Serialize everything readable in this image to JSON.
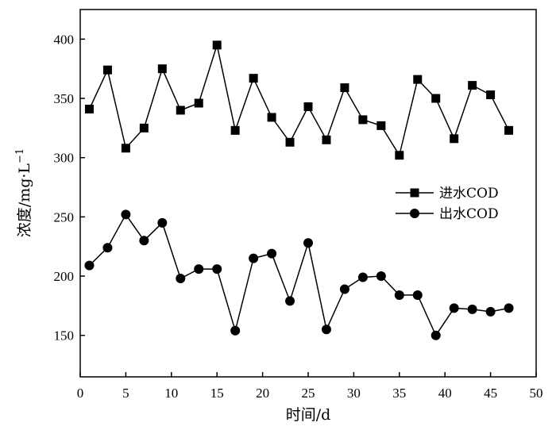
{
  "chart_data": {
    "type": "line",
    "title": "",
    "xlabel": "时间/d",
    "ylabel": "浓度/mg·L",
    "ylabel_sup": "−1",
    "xlim": [
      0,
      50
    ],
    "ylim": [
      115,
      425
    ],
    "xticks": [
      "0",
      "5",
      "10",
      "15",
      "20",
      "25",
      "30",
      "35",
      "40",
      "45",
      "50"
    ],
    "yticks": [
      "150",
      "200",
      "250",
      "300",
      "350",
      "400"
    ],
    "legend_position": "right",
    "grid": false,
    "series": [
      {
        "name": "进水COD",
        "marker": "square",
        "x": [
          1,
          3,
          5,
          7,
          9,
          11,
          13,
          15,
          17,
          19,
          21,
          23,
          25,
          27,
          29,
          31,
          33,
          35,
          37,
          39,
          41,
          43,
          45,
          47
        ],
        "values": [
          341,
          374,
          308,
          325,
          375,
          340,
          346,
          395,
          323,
          367,
          334,
          313,
          343,
          315,
          359,
          332,
          327,
          302,
          366,
          350,
          316,
          361,
          353,
          323
        ]
      },
      {
        "name": "出水COD",
        "marker": "circle",
        "x": [
          1,
          3,
          5,
          7,
          9,
          11,
          13,
          15,
          17,
          19,
          21,
          23,
          25,
          27,
          29,
          31,
          33,
          35,
          37,
          39,
          41,
          43,
          45,
          47
        ],
        "values": [
          209,
          224,
          252,
          230,
          245,
          198,
          206,
          206,
          154,
          215,
          219,
          179,
          228,
          155,
          189,
          199,
          200,
          184,
          184,
          150,
          173,
          172,
          170,
          173
        ]
      }
    ]
  }
}
